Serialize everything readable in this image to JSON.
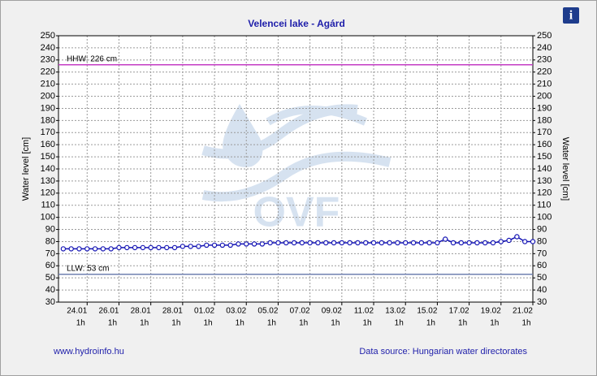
{
  "chart_data": {
    "type": "line",
    "title": "Velencei lake - Agárd",
    "y_label": "Water level [cm]",
    "y2_label": "Water level [cm]",
    "watermark": "OVF",
    "footer_left": "www.hydroinfo.hu",
    "footer_right": "Data source: Hungarian water directorates",
    "info_icon": "i",
    "x": [
      0.5,
      1,
      1.5,
      2,
      2.5,
      3,
      3.5,
      4,
      4.5,
      5,
      5.5,
      6,
      6.5,
      7,
      7.5,
      8,
      8.5,
      9,
      9.5,
      10,
      10.5,
      11,
      11.5,
      12,
      12.5,
      13,
      13.5,
      14,
      14.5,
      15,
      15.5,
      16,
      16.5,
      17,
      17.5,
      18,
      18.5,
      19,
      19.5,
      20,
      20.5,
      21,
      21.5,
      22,
      22.5,
      23,
      23.5,
      24,
      24.5,
      25,
      25.5,
      26,
      26.5,
      27,
      27.5,
      28,
      28.5,
      29,
      29.5,
      30
    ],
    "series": [
      {
        "color": "#1414b4",
        "values": [
          74,
          74,
          74,
          74,
          74,
          74,
          74,
          75,
          75,
          75,
          75,
          75,
          75,
          75,
          75,
          76,
          76,
          76,
          77,
          77,
          77,
          77,
          78,
          78,
          78,
          78,
          79,
          79,
          79,
          79,
          79,
          79,
          79,
          79,
          79,
          79,
          79,
          79,
          79,
          79,
          79,
          79,
          79,
          79,
          79,
          79,
          79,
          79,
          82,
          79,
          79,
          79,
          79,
          79,
          79,
          80,
          81,
          84,
          80,
          80
        ]
      }
    ],
    "xlim": [
      0.2,
      30
    ],
    "xticks": [
      {
        "value": 2,
        "label": "24.01"
      },
      {
        "value": 4,
        "label": "26.01"
      },
      {
        "value": 6,
        "label": "28.01"
      },
      {
        "value": 8,
        "label": "28.01"
      },
      {
        "value": 10,
        "label": "01.02"
      },
      {
        "value": 12,
        "label": "03.02"
      },
      {
        "value": 14,
        "label": "05.02"
      },
      {
        "value": 16,
        "label": "07.02"
      },
      {
        "value": 18,
        "label": "09.02"
      },
      {
        "value": 20,
        "label": "11.02"
      },
      {
        "value": 22,
        "label": "13.02"
      },
      {
        "value": 24,
        "label": "15.02"
      },
      {
        "value": 26,
        "label": "17.02"
      },
      {
        "value": 28,
        "label": "19.02"
      },
      {
        "value": 30,
        "label": "21.02"
      }
    ],
    "xtick_sublabels": [
      "1h",
      "1h",
      "1h",
      "1h",
      "1h",
      "1h",
      "1h",
      "1h",
      "1h",
      "1h",
      "1h",
      "1h",
      "1h",
      "1h",
      "1h"
    ],
    "ylim": [
      30,
      250
    ],
    "yticks": [
      30,
      40,
      50,
      60,
      70,
      80,
      90,
      100,
      110,
      120,
      130,
      140,
      150,
      160,
      170,
      180,
      190,
      200,
      210,
      220,
      230,
      240,
      250
    ],
    "y2lim": [
      30,
      250
    ],
    "y2ticks": [
      30,
      40,
      50,
      60,
      70,
      80,
      90,
      100,
      110,
      120,
      130,
      140,
      150,
      160,
      170,
      180,
      190,
      200,
      210,
      220,
      230,
      240,
      250
    ],
    "grid": true,
    "reference_lines": [
      {
        "value": 226,
        "label": "HHW: 226 cm",
        "color": "#c43cc4"
      },
      {
        "value": 53,
        "label": "LLW: 53 cm",
        "color": "#7080b0"
      }
    ]
  }
}
